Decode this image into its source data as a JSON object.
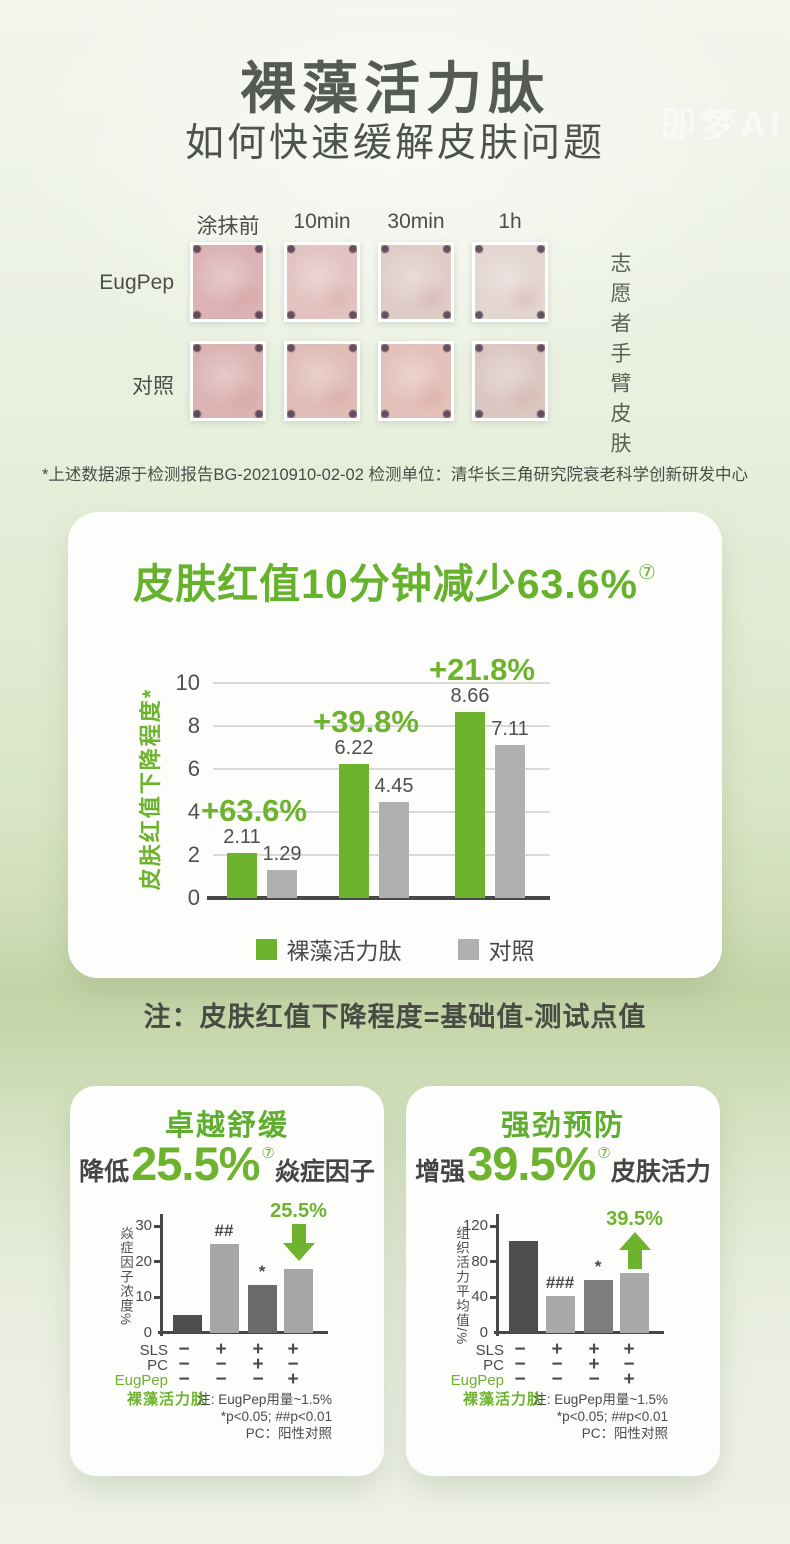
{
  "header": {
    "title": "裸藻活力肽",
    "subtitle": "如何快速缓解皮肤问题",
    "watermark": "即梦AI"
  },
  "test_panel": {
    "col_headers": [
      "涂抹前",
      "10min",
      "30min",
      "1h"
    ],
    "rows": [
      {
        "label": "EugPep",
        "tones": [
          "#dcb2b4",
          "#e2c3c0",
          "#dfccc7",
          "#e3d5d0"
        ]
      },
      {
        "label": "对照",
        "tones": [
          "#dbb3b2",
          "#e0bcb7",
          "#e3c0b9",
          "#dbc7c1"
        ]
      }
    ],
    "side_label": "志愿者手臂皮肤"
  },
  "footnote": "*上述数据源于检测报告BG-20210910-02-02  检测单位：清华长三角研究院衰老科学创新研发中心",
  "main_card": {
    "title": "皮肤红值10分钟减少63.6%",
    "title_sup": "⑦",
    "note": "注：皮肤红值下降程度=基础值-测试点值"
  },
  "colors": {
    "accent_green": "#6db32e",
    "bar_gray": "#b0b0b0",
    "dark_text": "#4a4e46",
    "axis_dark": "#474747"
  },
  "chart_data": [
    {
      "id": "main_redness",
      "type": "bar",
      "title": "皮肤红值10分钟减少63.6%⑦",
      "ylabel": "皮肤红值下降程度*",
      "ylim": [
        0,
        10
      ],
      "yticks": [
        0,
        2,
        4,
        6,
        8,
        10
      ],
      "grid": true,
      "legend_position": "bottom",
      "series": [
        {
          "name": "裸藻活力肽",
          "color": "#6db32e",
          "values": [
            2.11,
            6.22,
            8.66
          ]
        },
        {
          "name": "对照",
          "color": "#b0b0b0",
          "values": [
            1.29,
            4.45,
            7.11
          ]
        }
      ],
      "group_annotations": [
        "+63.6%",
        "+39.8%",
        "+21.8%"
      ]
    },
    {
      "id": "soothing",
      "type": "bar",
      "card_title": "卓越舒缓",
      "stat": {
        "prefix": "降低",
        "value": "25.5%",
        "sup": "⑦",
        "suffix": "焱症因子"
      },
      "ylabel": "焱症因子浓度%",
      "ylim": [
        0,
        30
      ],
      "yticks": [
        0,
        10,
        20,
        30
      ],
      "values": [
        5,
        25,
        13.5,
        18
      ],
      "bar_colors": [
        "#4e4e4e",
        "#a6a6a6",
        "#6b6b6b",
        "#a6a6a6"
      ],
      "bar_annotations": [
        "",
        "##",
        "*",
        "*"
      ],
      "arrow": {
        "direction": "down",
        "label": "25.5%",
        "bar_index": 3
      },
      "conditions": [
        {
          "label": "SLS",
          "green": false,
          "values": [
            "−",
            "+",
            "+",
            "+"
          ]
        },
        {
          "label": "PC",
          "green": false,
          "values": [
            "−",
            "−",
            "+",
            "−"
          ]
        },
        {
          "label": "EugPep",
          "green": true,
          "values": [
            "−",
            "−",
            "−",
            "+"
          ]
        }
      ],
      "conditions_sub_label": "裸藻活力肽",
      "note_lines": [
        "注: EugPep用量~1.5%",
        "*p<0.05; ##p<0.01",
        "PC：阳性对照"
      ]
    },
    {
      "id": "prevention",
      "type": "bar",
      "card_title": "强劲预防",
      "stat": {
        "prefix": "增强",
        "value": "39.5%",
        "sup": "⑦",
        "suffix": "皮肤活力"
      },
      "ylabel": "组织活力平均值/%",
      "ylim": [
        0,
        120
      ],
      "yticks": [
        0,
        40,
        80,
        120
      ],
      "values": [
        103,
        41,
        59,
        67
      ],
      "bar_colors": [
        "#4e4e4e",
        "#a9a9a9",
        "#7d7d7d",
        "#a9a9a9"
      ],
      "bar_annotations": [
        "",
        "###",
        "*",
        ""
      ],
      "arrow": {
        "direction": "up",
        "label": "39.5%",
        "bar_index": 3
      },
      "conditions": [
        {
          "label": "SLS",
          "green": false,
          "values": [
            "−",
            "+",
            "+",
            "+"
          ]
        },
        {
          "label": "PC",
          "green": false,
          "values": [
            "−",
            "−",
            "+",
            "−"
          ]
        },
        {
          "label": "EugPep",
          "green": true,
          "values": [
            "−",
            "−",
            "−",
            "+"
          ]
        }
      ],
      "conditions_sub_label": "裸藻活力肽",
      "note_lines": [
        "注: EugPep用量~1.5%",
        "*p<0.05; ##p<0.01",
        "PC：阳性对照"
      ]
    }
  ]
}
